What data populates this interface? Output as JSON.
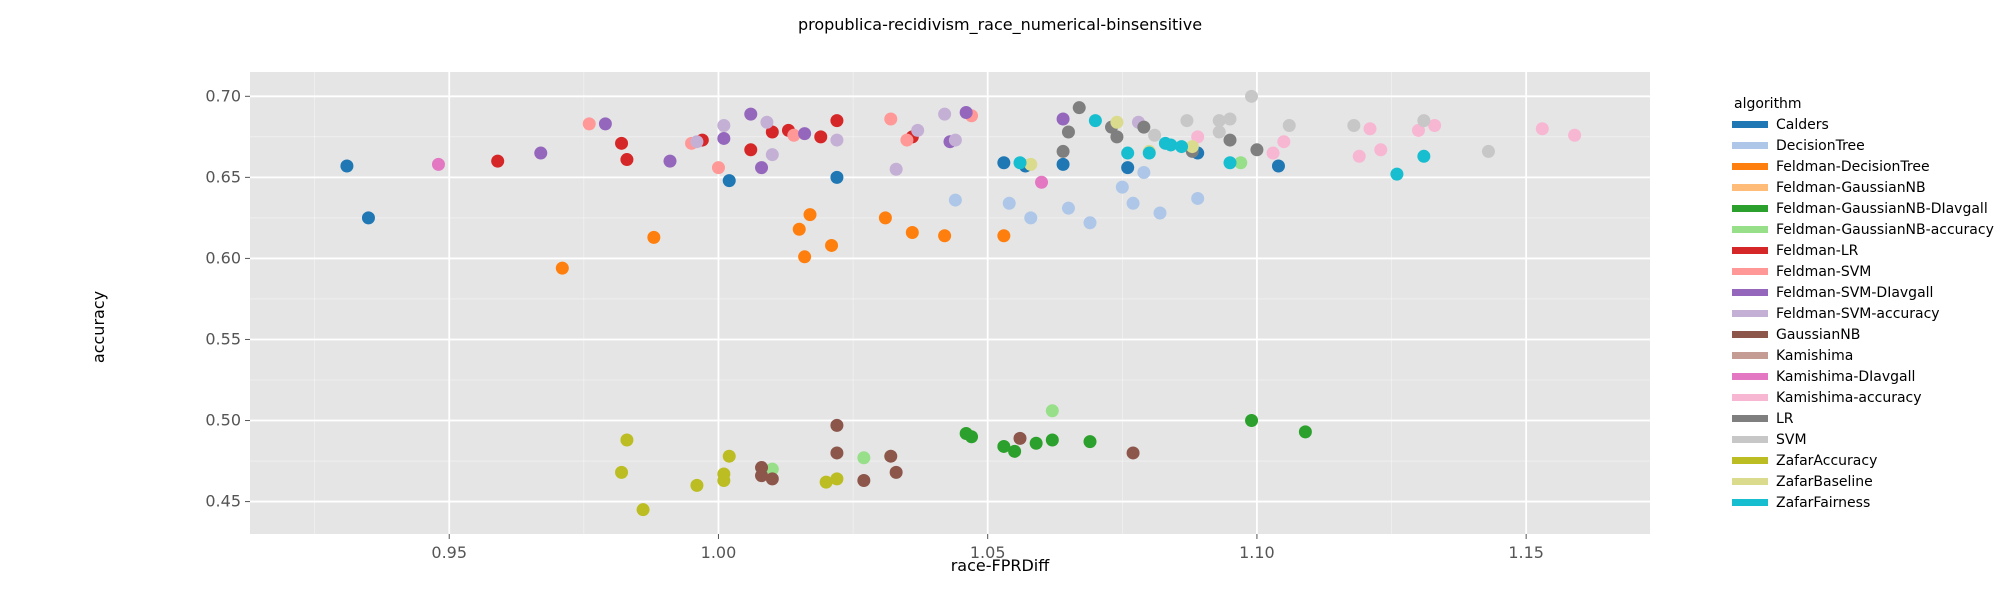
{
  "chart_data": {
    "type": "scatter",
    "title": "propublica-recidivism_race_numerical-binsensitive",
    "xlabel": "race-FPRDiff",
    "ylabel": "accuracy",
    "xlim": [
      0.913,
      1.173
    ],
    "ylim": [
      0.43,
      0.715
    ],
    "xticks": [
      0.95,
      1.0,
      1.05,
      1.1,
      1.15
    ],
    "xtick_labels": [
      "0.95",
      "1.00",
      "1.05",
      "1.10",
      "1.15"
    ],
    "yticks": [
      0.45,
      0.5,
      0.55,
      0.6,
      0.65,
      0.7
    ],
    "ytick_labels": [
      "0.45",
      "0.50",
      "0.55",
      "0.60",
      "0.65",
      "0.70"
    ],
    "grid": true,
    "background": "#e5e5e5",
    "grid_color": "#ffffff",
    "legend_title": "algorithm",
    "legend_position": "right",
    "series": [
      {
        "name": "Calders",
        "color": "#1f77b4",
        "points": [
          [
            0.931,
            0.657
          ],
          [
            0.935,
            0.625
          ],
          [
            1.002,
            0.648
          ],
          [
            1.022,
            0.65
          ],
          [
            1.053,
            0.659
          ],
          [
            1.057,
            0.657
          ],
          [
            1.064,
            0.658
          ],
          [
            1.076,
            0.656
          ],
          [
            1.089,
            0.665
          ],
          [
            1.104,
            0.657
          ]
        ]
      },
      {
        "name": "DecisionTree",
        "color": "#aec7e8",
        "points": [
          [
            1.044,
            0.636
          ],
          [
            1.054,
            0.634
          ],
          [
            1.058,
            0.625
          ],
          [
            1.065,
            0.631
          ],
          [
            1.069,
            0.622
          ],
          [
            1.075,
            0.644
          ],
          [
            1.077,
            0.634
          ],
          [
            1.079,
            0.653
          ],
          [
            1.082,
            0.628
          ],
          [
            1.089,
            0.637
          ]
        ]
      },
      {
        "name": "Feldman-DecisionTree",
        "color": "#ff7f0e",
        "points": [
          [
            0.971,
            0.594
          ],
          [
            0.988,
            0.613
          ],
          [
            1.015,
            0.618
          ],
          [
            1.016,
            0.601
          ],
          [
            1.017,
            0.627
          ],
          [
            1.021,
            0.608
          ],
          [
            1.031,
            0.625
          ],
          [
            1.036,
            0.616
          ],
          [
            1.042,
            0.614
          ],
          [
            1.053,
            0.614
          ]
        ]
      },
      {
        "name": "Feldman-GaussianNB",
        "color": "#ffbb78",
        "points": []
      },
      {
        "name": "Feldman-GaussianNB-DIavgall",
        "color": "#2ca02c",
        "points": [
          [
            1.046,
            0.492
          ],
          [
            1.047,
            0.49
          ],
          [
            1.053,
            0.484
          ],
          [
            1.055,
            0.481
          ],
          [
            1.059,
            0.486
          ],
          [
            1.062,
            0.488
          ],
          [
            1.069,
            0.487
          ],
          [
            1.099,
            0.5
          ],
          [
            1.109,
            0.493
          ]
        ]
      },
      {
        "name": "Feldman-GaussianNB-accuracy",
        "color": "#98df8a",
        "points": [
          [
            1.01,
            0.47
          ],
          [
            1.027,
            0.477
          ],
          [
            1.062,
            0.506
          ],
          [
            1.097,
            0.659
          ]
        ]
      },
      {
        "name": "Feldman-LR",
        "color": "#d62728",
        "points": [
          [
            0.959,
            0.66
          ],
          [
            0.982,
            0.671
          ],
          [
            0.983,
            0.661
          ],
          [
            0.997,
            0.673
          ],
          [
            1.006,
            0.667
          ],
          [
            1.01,
            0.678
          ],
          [
            1.013,
            0.679
          ],
          [
            1.019,
            0.675
          ],
          [
            1.022,
            0.685
          ],
          [
            1.036,
            0.675
          ]
        ]
      },
      {
        "name": "Feldman-SVM",
        "color": "#ff9896",
        "points": [
          [
            0.976,
            0.683
          ],
          [
            0.995,
            0.671
          ],
          [
            1.0,
            0.656
          ],
          [
            1.014,
            0.676
          ],
          [
            1.032,
            0.686
          ],
          [
            1.035,
            0.673
          ],
          [
            1.047,
            0.688
          ]
        ]
      },
      {
        "name": "Feldman-SVM-DIavgall",
        "color": "#9467bd",
        "points": [
          [
            0.967,
            0.665
          ],
          [
            0.979,
            0.683
          ],
          [
            0.991,
            0.66
          ],
          [
            1.001,
            0.674
          ],
          [
            1.006,
            0.689
          ],
          [
            1.008,
            0.656
          ],
          [
            1.016,
            0.677
          ],
          [
            1.043,
            0.672
          ],
          [
            1.046,
            0.69
          ],
          [
            1.064,
            0.686
          ]
        ]
      },
      {
        "name": "Feldman-SVM-accuracy",
        "color": "#c5b0d5",
        "points": [
          [
            0.996,
            0.672
          ],
          [
            1.001,
            0.682
          ],
          [
            1.009,
            0.684
          ],
          [
            1.01,
            0.664
          ],
          [
            1.022,
            0.673
          ],
          [
            1.033,
            0.655
          ],
          [
            1.037,
            0.679
          ],
          [
            1.042,
            0.689
          ],
          [
            1.044,
            0.673
          ],
          [
            1.078,
            0.684
          ]
        ]
      },
      {
        "name": "GaussianNB",
        "color": "#8c564b",
        "points": [
          [
            1.008,
            0.471
          ],
          [
            1.008,
            0.466
          ],
          [
            1.01,
            0.464
          ],
          [
            1.022,
            0.497
          ],
          [
            1.022,
            0.48
          ],
          [
            1.027,
            0.463
          ],
          [
            1.032,
            0.478
          ],
          [
            1.033,
            0.468
          ],
          [
            1.056,
            0.489
          ],
          [
            1.077,
            0.48
          ]
        ]
      },
      {
        "name": "Kamishima",
        "color": "#c49c94",
        "points": []
      },
      {
        "name": "Kamishima-DIavgall",
        "color": "#e377c2",
        "points": [
          [
            0.948,
            0.658
          ],
          [
            1.06,
            0.647
          ]
        ]
      },
      {
        "name": "Kamishima-accuracy",
        "color": "#f7b6d2",
        "points": [
          [
            1.089,
            0.675
          ],
          [
            1.103,
            0.665
          ],
          [
            1.105,
            0.672
          ],
          [
            1.119,
            0.663
          ],
          [
            1.121,
            0.68
          ],
          [
            1.123,
            0.667
          ],
          [
            1.13,
            0.679
          ],
          [
            1.133,
            0.682
          ],
          [
            1.153,
            0.68
          ],
          [
            1.159,
            0.676
          ]
        ]
      },
      {
        "name": "LR",
        "color": "#7f7f7f",
        "points": [
          [
            1.064,
            0.666
          ],
          [
            1.065,
            0.678
          ],
          [
            1.067,
            0.693
          ],
          [
            1.073,
            0.681
          ],
          [
            1.074,
            0.675
          ],
          [
            1.079,
            0.681
          ],
          [
            1.088,
            0.666
          ],
          [
            1.095,
            0.673
          ],
          [
            1.1,
            0.667
          ]
        ]
      },
      {
        "name": "SVM",
        "color": "#c7c7c7",
        "points": [
          [
            1.081,
            0.676
          ],
          [
            1.087,
            0.685
          ],
          [
            1.093,
            0.678
          ],
          [
            1.093,
            0.685
          ],
          [
            1.095,
            0.686
          ],
          [
            1.099,
            0.7
          ],
          [
            1.106,
            0.682
          ],
          [
            1.118,
            0.682
          ],
          [
            1.131,
            0.685
          ],
          [
            1.143,
            0.666
          ]
        ]
      },
      {
        "name": "ZafarAccuracy",
        "color": "#bcbd22",
        "points": [
          [
            0.982,
            0.468
          ],
          [
            0.983,
            0.488
          ],
          [
            0.986,
            0.445
          ],
          [
            0.996,
            0.46
          ],
          [
            1.001,
            0.463
          ],
          [
            1.001,
            0.467
          ],
          [
            1.002,
            0.478
          ],
          [
            1.02,
            0.462
          ],
          [
            1.022,
            0.464
          ]
        ]
      },
      {
        "name": "ZafarBaseline",
        "color": "#dbdb8d",
        "points": [
          [
            1.058,
            0.658
          ],
          [
            1.074,
            0.684
          ],
          [
            1.08,
            0.666
          ],
          [
            1.088,
            0.669
          ]
        ]
      },
      {
        "name": "ZafarFairness",
        "color": "#17becf",
        "points": [
          [
            1.056,
            0.659
          ],
          [
            1.07,
            0.685
          ],
          [
            1.076,
            0.665
          ],
          [
            1.08,
            0.665
          ],
          [
            1.083,
            0.671
          ],
          [
            1.084,
            0.67
          ],
          [
            1.086,
            0.669
          ],
          [
            1.095,
            0.659
          ],
          [
            1.126,
            0.652
          ],
          [
            1.131,
            0.663
          ]
        ]
      }
    ]
  }
}
